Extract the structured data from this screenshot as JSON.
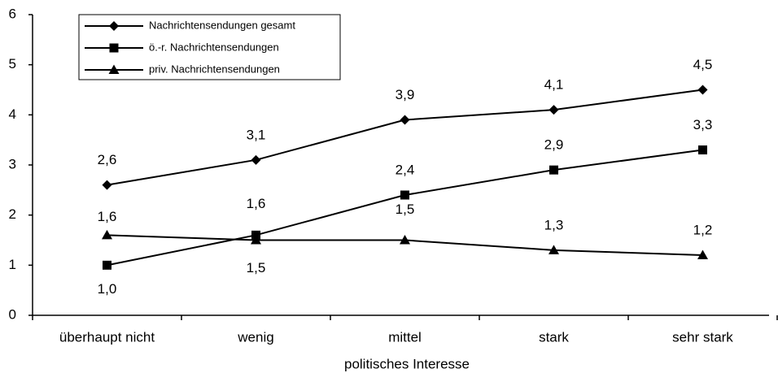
{
  "chart_data": {
    "type": "line",
    "categories": [
      "überhaupt nicht",
      "wenig",
      "mittel",
      "stark",
      "sehr stark"
    ],
    "x_label": "politisches Interesse",
    "series": [
      {
        "name": "Nachrichtensendungen gesamt",
        "color": "#000000",
        "marker": "diamond",
        "values": [
          2.6,
          3.1,
          3.9,
          4.1,
          4.5
        ],
        "value_labels": [
          "2,6",
          "3,1",
          "3,9",
          "4,1",
          "4,5"
        ]
      },
      {
        "name": "ö.-r. Nachrichtensendungen",
        "color": "#000000",
        "marker": "square",
        "values": [
          1.0,
          1.6,
          2.4,
          2.9,
          3.3
        ],
        "value_labels": [
          "1,0",
          "1,6",
          "2,4",
          "2,9",
          "3,3"
        ]
      },
      {
        "name": "priv. Nachrichtensendungen",
        "color": "#000000",
        "marker": "triangle",
        "values": [
          1.6,
          1.5,
          1.5,
          1.3,
          1.2
        ],
        "value_labels": [
          "1,6",
          "1,5",
          "1,5",
          "1,3",
          "1,2"
        ]
      }
    ],
    "ylim": [
      0,
      6
    ],
    "yticks": [
      0,
      1,
      2,
      3,
      4,
      5,
      6
    ],
    "grid": false,
    "legend": "top-left"
  }
}
